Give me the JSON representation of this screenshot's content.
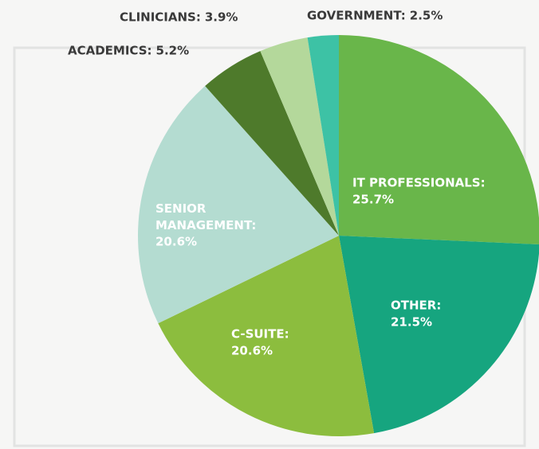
{
  "chart_data": {
    "type": "pie",
    "categories": [
      "IT PROFESSIONALS:",
      "OTHER:",
      "C-SUITE:",
      "SENIOR MANAGEMENT:",
      "ACADEMICS:",
      "CLINICIANS:",
      "GOVERNMENT:"
    ],
    "values": [
      25.7,
      21.5,
      20.6,
      20.6,
      5.2,
      3.9,
      2.5
    ],
    "value_labels": [
      "25.7%",
      "21.5%",
      "20.6%",
      "20.6%",
      "5.2%",
      "3.9%",
      "2.5%"
    ],
    "colors": [
      "#69b64a",
      "#16a57f",
      "#8cbd3e",
      "#b4dcd1",
      "#4e7a2b",
      "#b4d89b",
      "#3dc2a5"
    ]
  }
}
